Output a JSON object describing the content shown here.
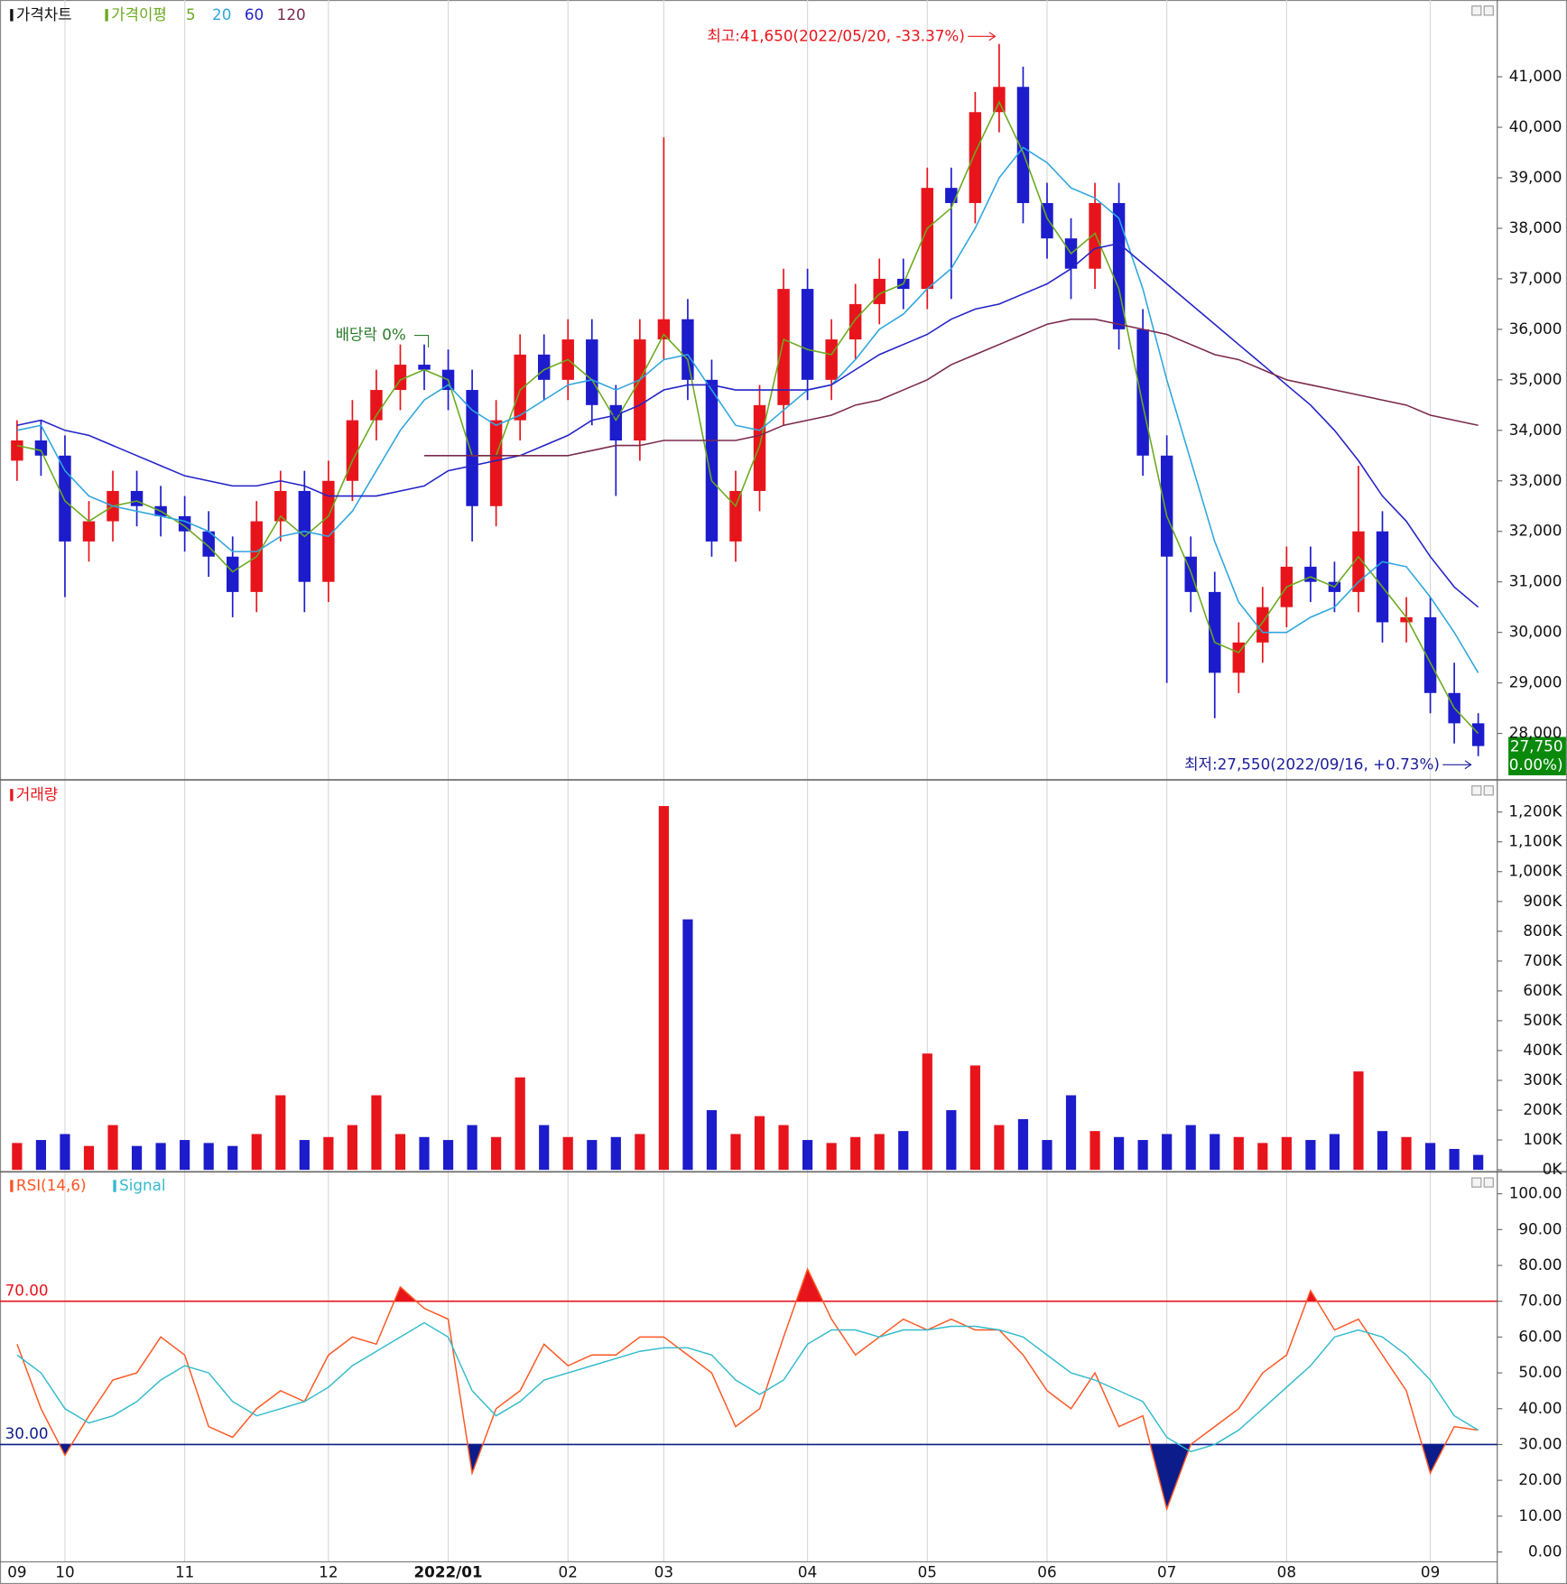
{
  "chart_data": [
    {
      "type": "candlestick",
      "title": "가격차트",
      "ma_title": "가격이평",
      "categories": [
        "09",
        null,
        "10",
        null,
        null,
        null,
        null,
        "11",
        null,
        null,
        null,
        null,
        null,
        "12",
        null,
        null,
        null,
        null,
        "2022/01",
        null,
        null,
        null,
        null,
        "02",
        null,
        null,
        null,
        "03",
        null,
        null,
        null,
        null,
        null,
        "04",
        null,
        null,
        null,
        null,
        "05",
        null,
        null,
        null,
        null,
        "06",
        null,
        null,
        null,
        null,
        "07",
        null,
        null,
        null,
        null,
        "08",
        null,
        null,
        null,
        null,
        null,
        "09",
        null,
        null
      ],
      "open": [
        33400,
        33800,
        33500,
        31800,
        32200,
        32800,
        32500,
        32300,
        32000,
        31500,
        30800,
        32200,
        32800,
        31000,
        33000,
        34200,
        34800,
        35300,
        35200,
        34800,
        32500,
        34200,
        35500,
        35000,
        35800,
        34500,
        33800,
        35800,
        36200,
        35000,
        31800,
        32800,
        34500,
        36800,
        35000,
        35800,
        36500,
        37000,
        36800,
        38800,
        38500,
        40300,
        40800,
        38500,
        37800,
        37200,
        38500,
        36000,
        33500,
        31500,
        30800,
        29200,
        29800,
        30500,
        31300,
        31000,
        30800,
        32000,
        30200,
        30300,
        28800,
        28200
      ],
      "high": [
        34200,
        34200,
        33900,
        32600,
        33200,
        33200,
        32900,
        32700,
        32400,
        31900,
        32600,
        33200,
        33200,
        33400,
        34600,
        35200,
        35700,
        35700,
        35600,
        35200,
        34600,
        35900,
        35900,
        36200,
        36200,
        34900,
        36200,
        39800,
        36600,
        35400,
        33200,
        34900,
        37200,
        37200,
        36200,
        36900,
        37400,
        37400,
        39200,
        39200,
        40700,
        41650,
        41200,
        38900,
        38200,
        38900,
        38900,
        36400,
        33900,
        31900,
        31200,
        30200,
        30900,
        31700,
        31700,
        31400,
        33300,
        32400,
        30700,
        30700,
        29400,
        28400
      ],
      "low": [
        33000,
        33100,
        30700,
        31400,
        31800,
        32100,
        31900,
        31600,
        31100,
        30300,
        30400,
        31800,
        30400,
        30600,
        32600,
        33800,
        34400,
        34800,
        34400,
        31800,
        32100,
        33800,
        34600,
        34600,
        34100,
        32700,
        33400,
        35400,
        34600,
        31500,
        31400,
        32400,
        34100,
        34600,
        34600,
        35400,
        36100,
        36400,
        36400,
        36600,
        38100,
        39900,
        38100,
        37400,
        36600,
        36800,
        35600,
        33100,
        29000,
        30400,
        28300,
        28800,
        29400,
        30100,
        30600,
        30400,
        30400,
        29800,
        29800,
        28400,
        27800,
        27550
      ],
      "close": [
        33800,
        33500,
        31800,
        32200,
        32800,
        32500,
        32300,
        32000,
        31500,
        30800,
        32200,
        32800,
        31000,
        33000,
        34200,
        34800,
        35300,
        35200,
        34800,
        32500,
        34200,
        35500,
        35000,
        35800,
        34500,
        33800,
        35800,
        36200,
        35000,
        31800,
        32800,
        34500,
        36800,
        35000,
        35800,
        36500,
        37000,
        36800,
        38800,
        38500,
        40300,
        40800,
        38500,
        37800,
        37200,
        38500,
        36000,
        33500,
        31500,
        30800,
        29200,
        29800,
        30500,
        31300,
        31000,
        30800,
        32000,
        30200,
        30300,
        28800,
        28200,
        27750
      ],
      "up_color": "#e8141b",
      "down_color": "#1c1ccc",
      "series": [
        {
          "name": "5",
          "color": "#6aaa1e",
          "values": [
            33700,
            33600,
            32600,
            32200,
            32500,
            32600,
            32400,
            32100,
            31700,
            31200,
            31500,
            32300,
            31900,
            32300,
            33400,
            34300,
            35000,
            35200,
            35000,
            33500,
            33500,
            34800,
            35200,
            35400,
            35000,
            34200,
            35000,
            35900,
            35400,
            33000,
            32500,
            33700,
            35800,
            35600,
            35500,
            36200,
            36700,
            36900,
            38000,
            38400,
            39500,
            40500,
            39500,
            38200,
            37500,
            37900,
            36800,
            34500,
            32300,
            31200,
            29800,
            29600,
            30200,
            30900,
            31100,
            30900,
            31500,
            30900,
            30300,
            29400,
            28500,
            28000
          ]
        },
        {
          "name": "20",
          "color": "#2fa6de",
          "values": [
            34000,
            34100,
            33200,
            32700,
            32500,
            32400,
            32300,
            32200,
            32000,
            31600,
            31600,
            31900,
            32000,
            31900,
            32400,
            33200,
            34000,
            34600,
            34900,
            34400,
            34100,
            34300,
            34600,
            34900,
            35000,
            34800,
            35000,
            35400,
            35500,
            34800,
            34100,
            34000,
            34400,
            34800,
            34900,
            35400,
            36000,
            36300,
            36800,
            37200,
            38000,
            39000,
            39600,
            39300,
            38800,
            38600,
            38200,
            36800,
            35000,
            33400,
            31800,
            30600,
            30000,
            30000,
            30300,
            30500,
            31000,
            31400,
            31300,
            30700,
            30000,
            29200
          ]
        },
        {
          "name": "60",
          "color": "#2323c8",
          "values": [
            34100,
            34200,
            34000,
            33900,
            33700,
            33500,
            33300,
            33100,
            33000,
            32900,
            32900,
            33000,
            32900,
            32700,
            32700,
            32700,
            32800,
            32900,
            33200,
            33300,
            33400,
            33500,
            33700,
            33900,
            34200,
            34300,
            34500,
            34800,
            34900,
            34900,
            34800,
            34800,
            34800,
            34800,
            34900,
            35200,
            35500,
            35700,
            35900,
            36200,
            36400,
            36500,
            36700,
            36900,
            37200,
            37600,
            37700,
            37300,
            36900,
            36500,
            36100,
            35700,
            35300,
            34900,
            34500,
            34000,
            33400,
            32700,
            32200,
            31500,
            30900,
            30500
          ]
        },
        {
          "name": "120",
          "color": "#7a2a4e",
          "values": [
            null,
            null,
            null,
            null,
            null,
            null,
            null,
            null,
            null,
            null,
            null,
            null,
            null,
            null,
            null,
            null,
            null,
            33500,
            33500,
            33500,
            33500,
            33500,
            33500,
            33500,
            33600,
            33700,
            33700,
            33800,
            33800,
            33800,
            33800,
            33900,
            34100,
            34200,
            34300,
            34500,
            34600,
            34800,
            35000,
            35300,
            35500,
            35700,
            35900,
            36100,
            36200,
            36200,
            36100,
            36000,
            35900,
            35700,
            35500,
            35400,
            35200,
            35000,
            34900,
            34800,
            34700,
            34600,
            34500,
            34300,
            34200,
            34100
          ]
        }
      ],
      "ylim": [
        27120,
        42440
      ],
      "yticks": [
        {
          "value": 28000,
          "label": "28,000"
        },
        {
          "value": 29000,
          "label": "29,000"
        },
        {
          "value": 30000,
          "label": "30,000"
        },
        {
          "value": 31000,
          "label": "31,000"
        },
        {
          "value": 32000,
          "label": "32,000"
        },
        {
          "value": 33000,
          "label": "33,000"
        },
        {
          "value": 34000,
          "label": "34,000"
        },
        {
          "value": 35000,
          "label": "35,000"
        },
        {
          "value": 36000,
          "label": "36,000"
        },
        {
          "value": 37000,
          "label": "37,000"
        },
        {
          "value": 38000,
          "label": "38,000"
        },
        {
          "value": 39000,
          "label": "39,000"
        },
        {
          "value": 40000,
          "label": "40,000"
        },
        {
          "value": 41000,
          "label": "41,000"
        }
      ],
      "annotations": [
        "최고:41,650(2022/05/20, -33.37%)",
        "최저:27,550(2022/09/16, +0.73%)",
        "배당락 0%"
      ],
      "last_price_label": "27,750",
      "last_change_label": "(0.00%)",
      "last_label_color": "#0a8a0a"
    },
    {
      "type": "bar",
      "title": "거래량",
      "values": [
        90000,
        100000,
        120000,
        80000,
        150000,
        80000,
        90000,
        100000,
        90000,
        80000,
        120000,
        250000,
        100000,
        110000,
        150000,
        250000,
        120000,
        110000,
        100000,
        150000,
        110000,
        310000,
        150000,
        110000,
        100000,
        110000,
        120000,
        1220000,
        840000,
        200000,
        120000,
        180000,
        150000,
        100000,
        90000,
        110000,
        120000,
        130000,
        390000,
        200000,
        350000,
        150000,
        170000,
        100000,
        250000,
        130000,
        110000,
        100000,
        120000,
        150000,
        120000,
        110000,
        90000,
        110000,
        100000,
        120000,
        330000,
        130000,
        110000,
        90000,
        70000,
        50000
      ],
      "up_color": "#e8141b",
      "down_color": "#1c1ccc",
      "ylim": [
        0,
        1240000
      ],
      "yticks": [
        {
          "value": 0,
          "label": "0K"
        },
        {
          "value": 100000,
          "label": "100K"
        },
        {
          "value": 200000,
          "label": "200K"
        },
        {
          "value": 300000,
          "label": "300K"
        },
        {
          "value": 400000,
          "label": "400K"
        },
        {
          "value": 500000,
          "label": "500K"
        },
        {
          "value": 600000,
          "label": "600K"
        },
        {
          "value": 700000,
          "label": "700K"
        },
        {
          "value": 800000,
          "label": "800K"
        },
        {
          "value": 900000,
          "label": "900K"
        },
        {
          "value": 1000000,
          "label": "1,000K"
        },
        {
          "value": 1100000,
          "label": "1,100K"
        },
        {
          "value": 1200000,
          "label": "1,200K"
        }
      ]
    },
    {
      "type": "line",
      "series": [
        {
          "name": "RSI(14,6)",
          "color": "#ff5522",
          "values": [
            58,
            40,
            27,
            38,
            48,
            50,
            60,
            55,
            35,
            32,
            40,
            45,
            42,
            55,
            60,
            58,
            74,
            68,
            65,
            22,
            40,
            45,
            58,
            52,
            55,
            55,
            60,
            60,
            55,
            50,
            35,
            40,
            60,
            79,
            65,
            55,
            60,
            65,
            62,
            65,
            62,
            62,
            55,
            45,
            40,
            50,
            35,
            38,
            12,
            30,
            35,
            40,
            50,
            55,
            73,
            62,
            65,
            55,
            45,
            22,
            35,
            34
          ]
        },
        {
          "name": "Signal",
          "color": "#33bbcc",
          "values": [
            55,
            50,
            40,
            36,
            38,
            42,
            48,
            52,
            50,
            42,
            38,
            40,
            42,
            46,
            52,
            56,
            60,
            64,
            60,
            45,
            38,
            42,
            48,
            50,
            52,
            54,
            56,
            57,
            57,
            55,
            48,
            44,
            48,
            58,
            62,
            62,
            60,
            62,
            62,
            63,
            63,
            62,
            60,
            55,
            50,
            48,
            45,
            42,
            32,
            28,
            30,
            34,
            40,
            46,
            52,
            60,
            62,
            60,
            55,
            48,
            38,
            34
          ]
        }
      ],
      "reference_lines": [
        {
          "value": 70,
          "label": "70.00",
          "color": "#e8141b"
        },
        {
          "value": 30,
          "label": "30.00",
          "color": "#0c1c8a"
        }
      ],
      "ylim": [
        -5,
        105
      ],
      "yticks": [
        {
          "value": 0,
          "label": "0.00"
        },
        {
          "value": 10,
          "label": "10.00"
        },
        {
          "value": 20,
          "label": "20.00"
        },
        {
          "value": 30,
          "label": "30.00"
        },
        {
          "value": 40,
          "label": "40.00"
        },
        {
          "value": 50,
          "label": "50.00"
        },
        {
          "value": 60,
          "label": "60.00"
        },
        {
          "value": 70,
          "label": "70.00"
        },
        {
          "value": 80,
          "label": "80.00"
        },
        {
          "value": 90,
          "label": "90.00"
        },
        {
          "value": 100,
          "label": "100.00"
        }
      ]
    }
  ]
}
